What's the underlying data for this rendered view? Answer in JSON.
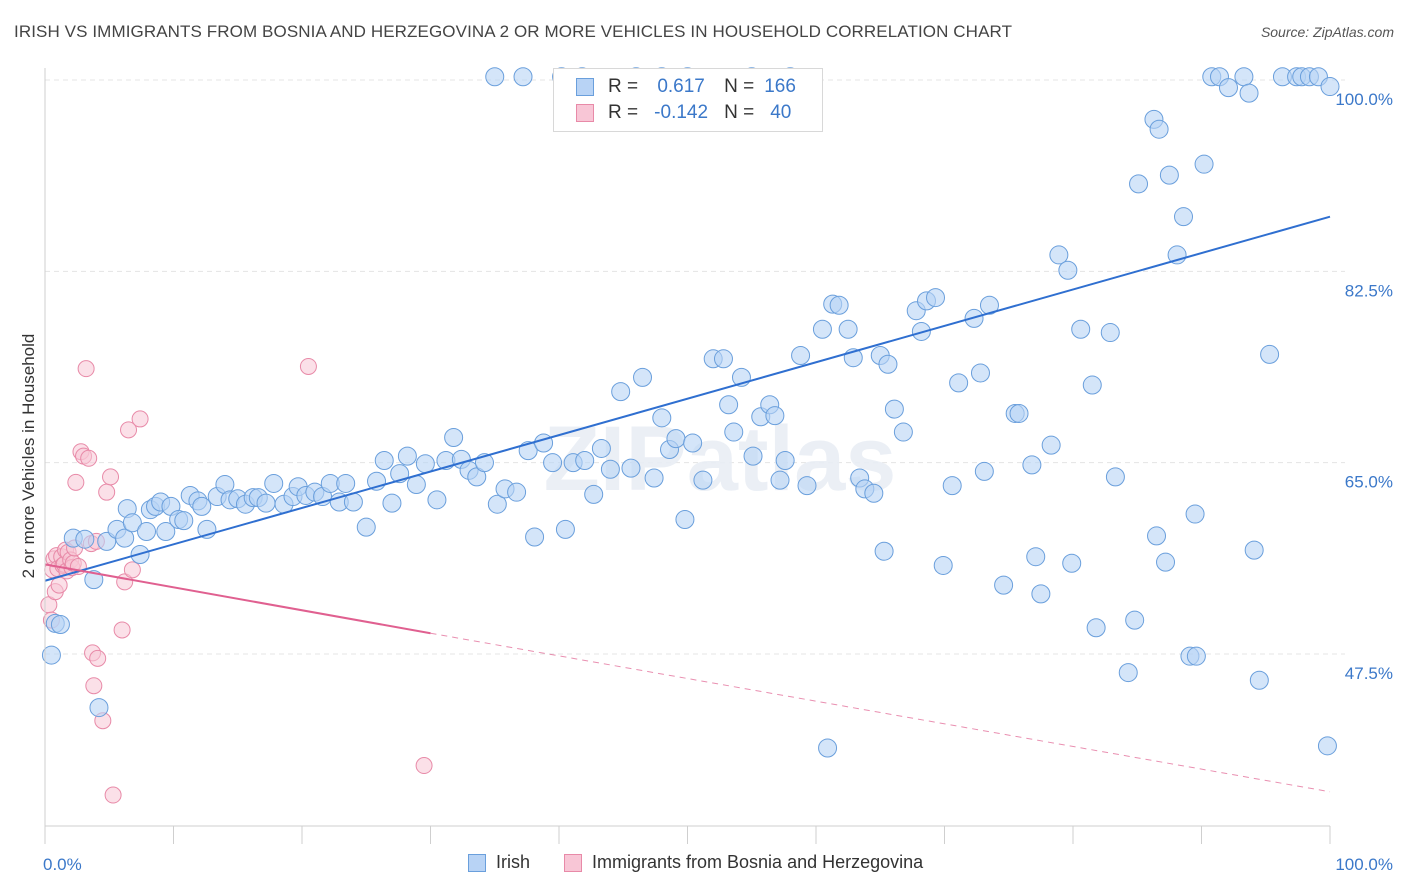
{
  "title": "IRISH VS IMMIGRANTS FROM BOSNIA AND HERZEGOVINA 2 OR MORE VEHICLES IN HOUSEHOLD CORRELATION CHART",
  "source": "Source: ZipAtlas.com",
  "watermark": "ZIPatlas",
  "legend": {
    "irish": {
      "r_label": "R =",
      "r_value": "0.617",
      "n_label": "N =",
      "n_value": "166"
    },
    "bosnia": {
      "r_label": "R =",
      "r_value": "-0.142",
      "n_label": "N =",
      "n_value": "40"
    }
  },
  "colors": {
    "irish_fill": "#b8d3f5",
    "irish_stroke": "#6a9fdc",
    "irish_line": "#2f6fd0",
    "bosnia_fill": "#f8c6d6",
    "bosnia_stroke": "#e88aa8",
    "bosnia_line": "#e06090",
    "axis_text": "#3b78c9",
    "grid": "#e4e4e4"
  },
  "chart_data": {
    "type": "scatter",
    "title": "IRISH VS IMMIGRANTS FROM BOSNIA AND HERZEGOVINA 2 OR MORE VEHICLES IN HOUSEHOLD CORRELATION CHART",
    "xlabel": "",
    "ylabel": "2 or more Vehicles in Household",
    "xlim": [
      0,
      100
    ],
    "ylim": [
      32.5,
      102
    ],
    "x_tick_labels": [
      "0.0%",
      "100.0%"
    ],
    "y_ticks": [
      47.5,
      65.0,
      82.5,
      100.0
    ],
    "y_tick_labels": [
      "47.5%",
      "65.0%",
      "82.5%",
      "100.0%"
    ],
    "grid": true,
    "legend_position": "top-center",
    "series": [
      {
        "name": "Irish",
        "r": 0.617,
        "n": 166,
        "trend": {
          "x0": 0,
          "y0": 54.2,
          "x1": 100,
          "y1": 87.5
        },
        "points": [
          [
            0.5,
            47.4
          ],
          [
            0.8,
            50.3
          ],
          [
            1.2,
            50.2
          ],
          [
            2.2,
            58.1
          ],
          [
            3.1,
            58.0
          ],
          [
            3.8,
            54.3
          ],
          [
            4.2,
            42.6
          ],
          [
            4.8,
            57.8
          ],
          [
            5.6,
            58.9
          ],
          [
            6.2,
            58.1
          ],
          [
            6.4,
            60.8
          ],
          [
            6.8,
            59.5
          ],
          [
            7.4,
            56.6
          ],
          [
            7.9,
            58.7
          ],
          [
            8.2,
            60.7
          ],
          [
            8.6,
            61.0
          ],
          [
            9.0,
            61.4
          ],
          [
            9.4,
            58.7
          ],
          [
            9.8,
            61.0
          ],
          [
            10.4,
            59.8
          ],
          [
            10.8,
            59.7
          ],
          [
            11.3,
            62.0
          ],
          [
            11.9,
            61.5
          ],
          [
            12.2,
            61.0
          ],
          [
            12.6,
            58.9
          ],
          [
            13.4,
            61.9
          ],
          [
            14.0,
            63.0
          ],
          [
            14.4,
            61.6
          ],
          [
            15.0,
            61.7
          ],
          [
            15.6,
            61.2
          ],
          [
            16.2,
            61.8
          ],
          [
            16.6,
            61.8
          ],
          [
            17.2,
            61.3
          ],
          [
            17.8,
            63.1
          ],
          [
            18.6,
            61.2
          ],
          [
            19.3,
            61.9
          ],
          [
            19.7,
            62.8
          ],
          [
            20.3,
            62.0
          ],
          [
            21.0,
            62.3
          ],
          [
            21.6,
            61.9
          ],
          [
            22.2,
            63.1
          ],
          [
            22.9,
            61.4
          ],
          [
            23.4,
            63.1
          ],
          [
            24.0,
            61.4
          ],
          [
            25.0,
            59.1
          ],
          [
            25.8,
            63.3
          ],
          [
            26.4,
            65.2
          ],
          [
            27.0,
            61.3
          ],
          [
            27.6,
            64.0
          ],
          [
            28.2,
            65.6
          ],
          [
            28.9,
            63.0
          ],
          [
            29.6,
            64.9
          ],
          [
            30.5,
            61.6
          ],
          [
            31.2,
            65.2
          ],
          [
            31.8,
            67.3
          ],
          [
            32.4,
            65.3
          ],
          [
            33.0,
            64.3
          ],
          [
            33.6,
            63.7
          ],
          [
            34.2,
            65.0
          ],
          [
            35.2,
            61.2
          ],
          [
            35.8,
            62.6
          ],
          [
            36.7,
            62.3
          ],
          [
            37.6,
            66.1
          ],
          [
            38.1,
            58.2
          ],
          [
            38.8,
            66.8
          ],
          [
            39.5,
            65.0
          ],
          [
            40.5,
            58.9
          ],
          [
            41.1,
            65.0
          ],
          [
            42.0,
            65.2
          ],
          [
            42.7,
            62.1
          ],
          [
            43.3,
            66.3
          ],
          [
            44.0,
            64.4
          ],
          [
            44.8,
            71.5
          ],
          [
            45.6,
            64.5
          ],
          [
            46.5,
            72.8
          ],
          [
            47.4,
            63.6
          ],
          [
            48.0,
            69.1
          ],
          [
            48.6,
            66.2
          ],
          [
            49.1,
            67.2
          ],
          [
            49.8,
            59.8
          ],
          [
            50.4,
            66.8
          ],
          [
            51.2,
            63.4
          ],
          [
            52.0,
            74.5
          ],
          [
            52.8,
            74.5
          ],
          [
            53.2,
            70.3
          ],
          [
            53.6,
            67.8
          ],
          [
            54.2,
            72.8
          ],
          [
            55.1,
            65.6
          ],
          [
            55.7,
            69.2
          ],
          [
            56.4,
            70.3
          ],
          [
            56.8,
            69.3
          ],
          [
            57.2,
            63.4
          ],
          [
            57.6,
            65.2
          ],
          [
            58.8,
            74.8
          ],
          [
            59.3,
            62.9
          ],
          [
            60.5,
            77.2
          ],
          [
            61.3,
            79.5
          ],
          [
            61.8,
            79.4
          ],
          [
            62.5,
            77.2
          ],
          [
            62.9,
            74.6
          ],
          [
            63.4,
            63.6
          ],
          [
            63.8,
            62.6
          ],
          [
            64.5,
            62.2
          ],
          [
            65.0,
            74.8
          ],
          [
            65.3,
            56.9
          ],
          [
            65.6,
            74.0
          ],
          [
            66.1,
            69.9
          ],
          [
            66.8,
            67.8
          ],
          [
            67.8,
            78.9
          ],
          [
            68.2,
            77.0
          ],
          [
            68.6,
            79.8
          ],
          [
            69.3,
            80.1
          ],
          [
            69.9,
            55.6
          ],
          [
            70.6,
            62.9
          ],
          [
            71.1,
            72.3
          ],
          [
            72.3,
            78.2
          ],
          [
            72.8,
            73.2
          ],
          [
            73.1,
            64.2
          ],
          [
            73.5,
            79.4
          ],
          [
            74.6,
            53.8
          ],
          [
            75.5,
            69.5
          ],
          [
            75.8,
            69.5
          ],
          [
            76.8,
            64.8
          ],
          [
            77.1,
            56.4
          ],
          [
            77.5,
            53.0
          ],
          [
            78.3,
            66.6
          ],
          [
            78.9,
            84.0
          ],
          [
            79.6,
            82.6
          ],
          [
            79.9,
            55.8
          ],
          [
            80.6,
            77.2
          ],
          [
            81.5,
            72.1
          ],
          [
            81.8,
            49.9
          ],
          [
            82.9,
            76.9
          ],
          [
            83.3,
            63.7
          ],
          [
            84.3,
            45.8
          ],
          [
            84.8,
            50.6
          ],
          [
            85.1,
            90.5
          ],
          [
            86.3,
            96.4
          ],
          [
            86.7,
            95.5
          ],
          [
            87.5,
            91.3
          ],
          [
            88.1,
            84.0
          ],
          [
            88.6,
            87.5
          ],
          [
            89.1,
            47.3
          ],
          [
            89.6,
            47.3
          ],
          [
            90.2,
            92.3
          ],
          [
            90.8,
            100.3
          ],
          [
            91.4,
            100.3
          ],
          [
            92.1,
            99.3
          ],
          [
            93.3,
            100.3
          ],
          [
            93.7,
            98.8
          ],
          [
            94.5,
            45.1
          ],
          [
            95.3,
            74.9
          ],
          [
            96.3,
            100.3
          ],
          [
            97.4,
            100.3
          ],
          [
            97.8,
            100.3
          ],
          [
            98.4,
            100.3
          ],
          [
            99.1,
            100.3
          ],
          [
            99.8,
            39.1
          ],
          [
            100.0,
            99.4
          ],
          [
            35.0,
            100.3
          ],
          [
            37.2,
            100.3
          ],
          [
            40.2,
            100.3
          ],
          [
            41.8,
            100.3
          ],
          [
            46.0,
            100.3
          ],
          [
            48.0,
            100.3
          ],
          [
            50.0,
            100.3
          ],
          [
            55.0,
            100.3
          ],
          [
            58.0,
            100.3
          ],
          [
            94.1,
            57.0
          ],
          [
            89.5,
            60.3
          ],
          [
            60.9,
            38.9
          ],
          [
            87.2,
            55.9
          ],
          [
            86.5,
            58.3
          ]
        ]
      },
      {
        "name": "Immigrants from Bosnia and Herzegovina",
        "r": -0.142,
        "n": 40,
        "trend": {
          "x0": 0,
          "y0": 55.7,
          "x1": 30,
          "y1": 49.4,
          "dash_x1": 100,
          "dash_y1": 34.9
        },
        "points": [
          [
            0.3,
            52.0
          ],
          [
            0.5,
            50.6
          ],
          [
            0.6,
            55.2
          ],
          [
            0.7,
            56.2
          ],
          [
            0.8,
            53.2
          ],
          [
            0.9,
            56.5
          ],
          [
            1.0,
            55.3
          ],
          [
            1.1,
            53.8
          ],
          [
            1.3,
            56.4
          ],
          [
            1.4,
            55.6
          ],
          [
            1.5,
            55.7
          ],
          [
            1.6,
            57.0
          ],
          [
            1.7,
            55.1
          ],
          [
            1.8,
            56.8
          ],
          [
            2.0,
            56.1
          ],
          [
            2.1,
            55.4
          ],
          [
            2.2,
            55.8
          ],
          [
            2.3,
            57.2
          ],
          [
            2.4,
            63.2
          ],
          [
            2.6,
            55.5
          ],
          [
            2.8,
            66.0
          ],
          [
            3.0,
            65.6
          ],
          [
            3.2,
            73.6
          ],
          [
            3.4,
            65.4
          ],
          [
            3.6,
            57.6
          ],
          [
            3.7,
            47.6
          ],
          [
            3.8,
            44.6
          ],
          [
            4.0,
            57.8
          ],
          [
            4.1,
            47.1
          ],
          [
            4.5,
            41.4
          ],
          [
            4.8,
            62.3
          ],
          [
            5.1,
            63.7
          ],
          [
            5.3,
            34.6
          ],
          [
            6.0,
            49.7
          ],
          [
            6.2,
            54.1
          ],
          [
            6.5,
            68.0
          ],
          [
            6.8,
            55.2
          ],
          [
            7.4,
            69.0
          ],
          [
            20.5,
            73.8
          ],
          [
            29.5,
            37.3
          ]
        ]
      }
    ]
  }
}
